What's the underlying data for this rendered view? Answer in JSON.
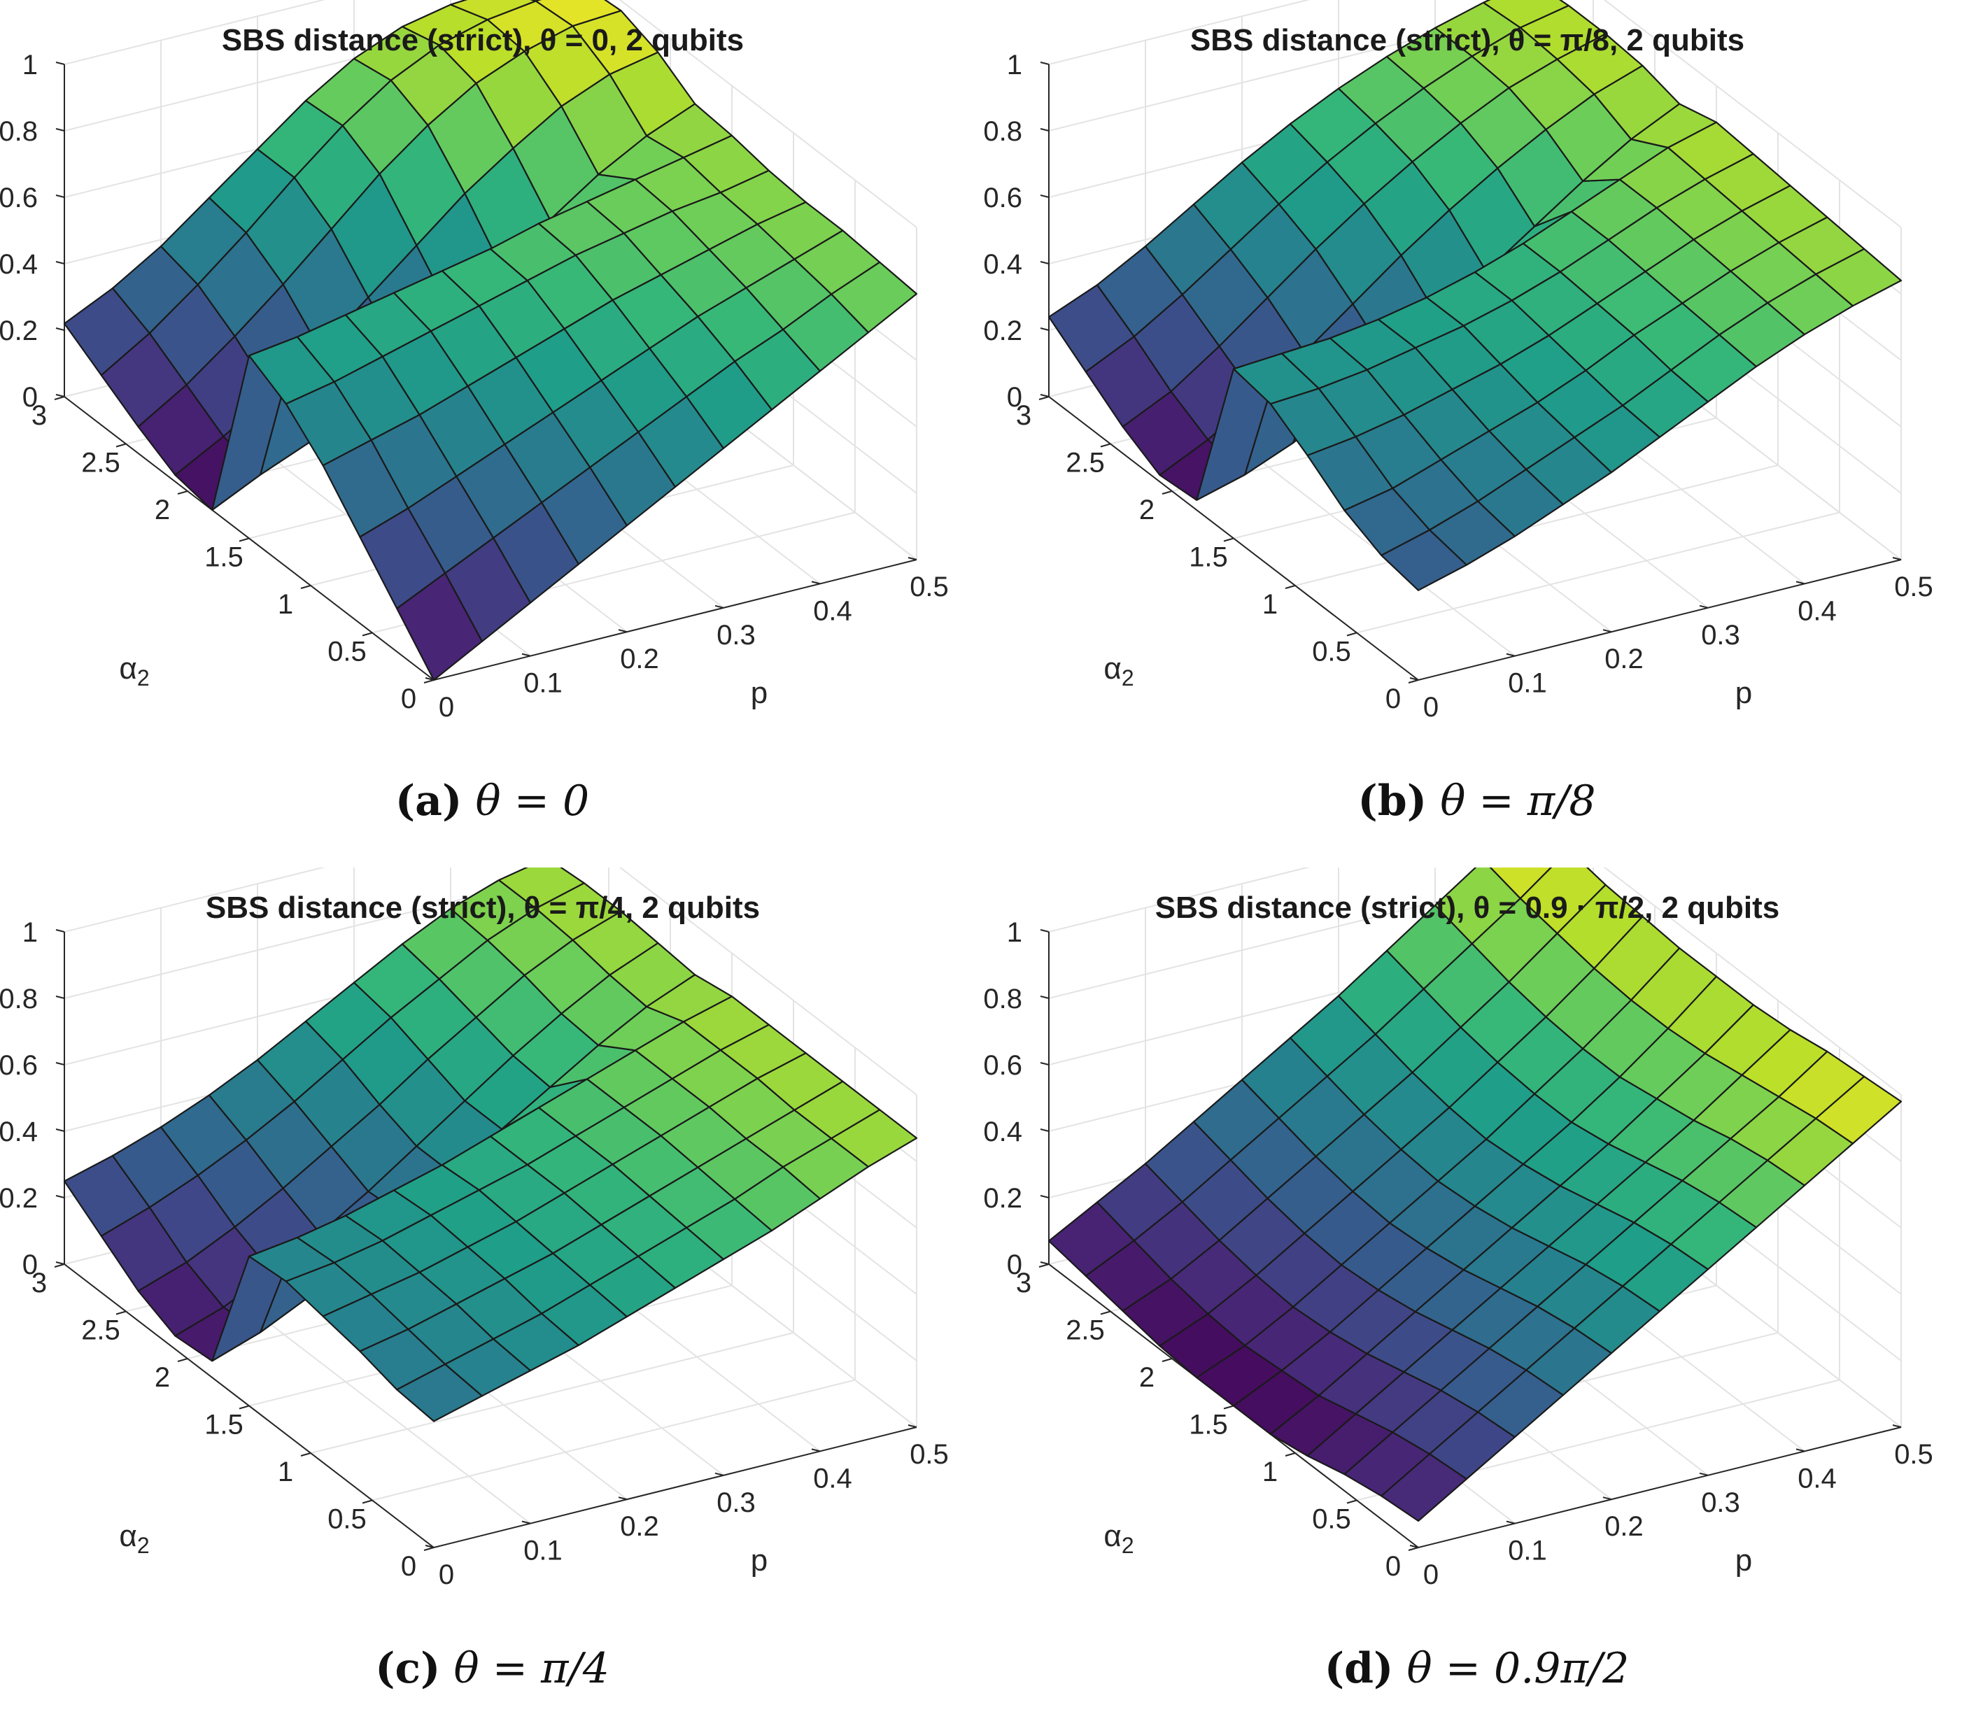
{
  "axes_common": {
    "xlabel": "p",
    "ylabel": "α",
    "ylabel_sub": "2",
    "x_ticks": [
      "0",
      "0.1",
      "0.2",
      "0.3",
      "0.4",
      "0.5"
    ],
    "y_ticks": [
      "0",
      "0.5",
      "1",
      "1.5",
      "2",
      "2.5",
      "3"
    ],
    "z_ticks": [
      "0",
      "0.2",
      "0.4",
      "0.6",
      "0.8",
      "1"
    ]
  },
  "chart_data": [
    {
      "type": "surface",
      "title": "SBS distance (strict), θ = 0, 2 qubits",
      "caption_label": "(a)",
      "caption_math": "θ = 0",
      "xlabel": "p",
      "ylabel": "α2",
      "zlabel": "",
      "xlim": [
        0,
        0.5
      ],
      "ylim": [
        0,
        3
      ],
      "zlim": [
        0,
        1
      ],
      "grid": true,
      "colormap": "viridis",
      "p": [
        0,
        0.05,
        0.1,
        0.15,
        0.2,
        0.25,
        0.3,
        0.35,
        0.4,
        0.45,
        0.5
      ],
      "alpha2": [
        0,
        0.3,
        0.6,
        0.9,
        1.2,
        1.5,
        1.8,
        2.1,
        2.4,
        2.7,
        3.0
      ],
      "z_rows_by_alpha2": [
        [
          0.0,
          0.08,
          0.16,
          0.24,
          0.32,
          0.4,
          0.48,
          0.56,
          0.64,
          0.72,
          0.8
        ],
        [
          0.13,
          0.2,
          0.27,
          0.34,
          0.41,
          0.48,
          0.55,
          0.62,
          0.68,
          0.75,
          0.81
        ],
        [
          0.26,
          0.31,
          0.37,
          0.43,
          0.49,
          0.55,
          0.61,
          0.67,
          0.72,
          0.77,
          0.82
        ],
        [
          0.39,
          0.43,
          0.47,
          0.52,
          0.57,
          0.62,
          0.67,
          0.71,
          0.75,
          0.79,
          0.82
        ],
        [
          0.49,
          0.52,
          0.56,
          0.6,
          0.64,
          0.68,
          0.72,
          0.75,
          0.78,
          0.8,
          0.83
        ],
        [
          0.55,
          0.57,
          0.6,
          0.63,
          0.66,
          0.69,
          0.73,
          0.76,
          0.79,
          0.82,
          0.85
        ],
        [
          0.0,
          0.07,
          0.13,
          0.21,
          0.3,
          0.4,
          0.51,
          0.62,
          0.72,
          0.8,
          0.86
        ],
        [
          0.02,
          0.1,
          0.19,
          0.29,
          0.41,
          0.53,
          0.65,
          0.75,
          0.84,
          0.9,
          0.93
        ],
        [
          0.08,
          0.17,
          0.28,
          0.4,
          0.53,
          0.66,
          0.77,
          0.86,
          0.92,
          0.96,
          0.97
        ],
        [
          0.15,
          0.24,
          0.35,
          0.47,
          0.6,
          0.72,
          0.82,
          0.89,
          0.93,
          0.95,
          0.96
        ],
        [
          0.22,
          0.29,
          0.38,
          0.49,
          0.6,
          0.71,
          0.8,
          0.86,
          0.89,
          0.9,
          0.9
        ]
      ]
    },
    {
      "type": "surface",
      "title": "SBS distance (strict), θ = π/8, 2 qubits",
      "caption_label": "(b)",
      "caption_math": "θ = π/8",
      "xlabel": "p",
      "ylabel": "α2",
      "zlabel": "",
      "xlim": [
        0,
        0.5
      ],
      "ylim": [
        0,
        3
      ],
      "zlim": [
        0,
        1
      ],
      "grid": true,
      "colormap": "viridis",
      "p": [
        0,
        0.05,
        0.1,
        0.15,
        0.2,
        0.25,
        0.3,
        0.35,
        0.4,
        0.45,
        0.5
      ],
      "alpha2": [
        0,
        0.3,
        0.6,
        0.9,
        1.2,
        1.5,
        1.8,
        2.1,
        2.4,
        2.7,
        3.0
      ],
      "z_rows_by_alpha2": [
        [
          0.27,
          0.31,
          0.36,
          0.42,
          0.48,
          0.55,
          0.62,
          0.69,
          0.75,
          0.8,
          0.84
        ],
        [
          0.29,
          0.33,
          0.38,
          0.44,
          0.5,
          0.56,
          0.63,
          0.7,
          0.76,
          0.81,
          0.85
        ],
        [
          0.34,
          0.37,
          0.42,
          0.47,
          0.52,
          0.58,
          0.65,
          0.71,
          0.77,
          0.82,
          0.86
        ],
        [
          0.42,
          0.44,
          0.47,
          0.51,
          0.55,
          0.6,
          0.66,
          0.72,
          0.78,
          0.83,
          0.87
        ],
        [
          0.49,
          0.5,
          0.52,
          0.55,
          0.58,
          0.62,
          0.67,
          0.73,
          0.79,
          0.84,
          0.88
        ],
        [
          0.51,
          0.52,
          0.53,
          0.55,
          0.58,
          0.62,
          0.67,
          0.73,
          0.79,
          0.85,
          0.89
        ],
        [
          0.03,
          0.07,
          0.13,
          0.21,
          0.3,
          0.4,
          0.5,
          0.6,
          0.7,
          0.79,
          0.86
        ],
        [
          0.02,
          0.09,
          0.18,
          0.28,
          0.39,
          0.5,
          0.6,
          0.69,
          0.77,
          0.84,
          0.89
        ],
        [
          0.08,
          0.15,
          0.25,
          0.36,
          0.47,
          0.57,
          0.66,
          0.74,
          0.81,
          0.86,
          0.9
        ],
        [
          0.16,
          0.23,
          0.32,
          0.42,
          0.52,
          0.61,
          0.69,
          0.76,
          0.82,
          0.87,
          0.9
        ],
        [
          0.24,
          0.3,
          0.38,
          0.47,
          0.56,
          0.64,
          0.71,
          0.77,
          0.82,
          0.86,
          0.89
        ]
      ]
    },
    {
      "type": "surface",
      "title": "SBS distance (strict), θ = π/4, 2 qubits",
      "caption_label": "(c)",
      "caption_math": "θ = π/4",
      "xlabel": "p",
      "ylabel": "α2",
      "zlabel": "",
      "xlim": [
        0,
        0.5
      ],
      "ylim": [
        0,
        3
      ],
      "zlim": [
        0,
        1
      ],
      "grid": true,
      "colormap": "viridis",
      "p": [
        0,
        0.05,
        0.1,
        0.15,
        0.2,
        0.25,
        0.3,
        0.35,
        0.4,
        0.45,
        0.5
      ],
      "alpha2": [
        0,
        0.3,
        0.6,
        0.9,
        1.2,
        1.5,
        1.8,
        2.1,
        2.4,
        2.7,
        3.0
      ],
      "z_rows_by_alpha2": [
        [
          0.38,
          0.42,
          0.46,
          0.5,
          0.55,
          0.6,
          0.65,
          0.7,
          0.76,
          0.82,
          0.87
        ],
        [
          0.39,
          0.43,
          0.47,
          0.51,
          0.56,
          0.61,
          0.66,
          0.71,
          0.77,
          0.82,
          0.87
        ],
        [
          0.42,
          0.45,
          0.49,
          0.53,
          0.57,
          0.62,
          0.67,
          0.72,
          0.77,
          0.82,
          0.87
        ],
        [
          0.44,
          0.47,
          0.5,
          0.54,
          0.58,
          0.63,
          0.68,
          0.73,
          0.78,
          0.83,
          0.87
        ],
        [
          0.46,
          0.48,
          0.51,
          0.55,
          0.59,
          0.63,
          0.68,
          0.73,
          0.78,
          0.83,
          0.87
        ],
        [
          0.45,
          0.47,
          0.5,
          0.54,
          0.58,
          0.63,
          0.68,
          0.73,
          0.78,
          0.83,
          0.87
        ],
        [
          0.05,
          0.1,
          0.17,
          0.25,
          0.34,
          0.43,
          0.53,
          0.62,
          0.71,
          0.79,
          0.85
        ],
        [
          0.04,
          0.09,
          0.16,
          0.24,
          0.33,
          0.43,
          0.53,
          0.63,
          0.72,
          0.8,
          0.86
        ],
        [
          0.09,
          0.14,
          0.21,
          0.29,
          0.38,
          0.47,
          0.57,
          0.66,
          0.75,
          0.82,
          0.87
        ],
        [
          0.17,
          0.22,
          0.28,
          0.35,
          0.43,
          0.52,
          0.61,
          0.69,
          0.77,
          0.83,
          0.87
        ],
        [
          0.25,
          0.29,
          0.34,
          0.4,
          0.47,
          0.55,
          0.63,
          0.71,
          0.78,
          0.83,
          0.86
        ]
      ]
    },
    {
      "type": "surface",
      "title": "SBS distance (strict), θ = 0.9 · π/2, 2 qubits",
      "caption_label": "(d)",
      "caption_math": "θ = 0.9π/2",
      "xlabel": "p",
      "ylabel": "α2",
      "zlabel": "",
      "xlim": [
        0,
        0.5
      ],
      "ylim": [
        0,
        3
      ],
      "zlim": [
        0,
        1
      ],
      "grid": true,
      "colormap": "viridis",
      "p": [
        0,
        0.05,
        0.1,
        0.15,
        0.2,
        0.25,
        0.3,
        0.35,
        0.4,
        0.45,
        0.5
      ],
      "alpha2": [
        0,
        0.3,
        0.6,
        0.9,
        1.2,
        1.5,
        1.8,
        2.1,
        2.4,
        2.7,
        3.0
      ],
      "z_rows_by_alpha2": [
        [
          0.08,
          0.17,
          0.26,
          0.35,
          0.44,
          0.53,
          0.62,
          0.71,
          0.8,
          0.89,
          0.98
        ],
        [
          0.07,
          0.16,
          0.25,
          0.34,
          0.43,
          0.52,
          0.61,
          0.7,
          0.79,
          0.88,
          0.97
        ],
        [
          0.05,
          0.14,
          0.23,
          0.32,
          0.41,
          0.5,
          0.59,
          0.68,
          0.77,
          0.86,
          0.96
        ],
        [
          0.02,
          0.11,
          0.2,
          0.29,
          0.38,
          0.47,
          0.56,
          0.65,
          0.74,
          0.84,
          0.94
        ],
        [
          0.0,
          0.08,
          0.17,
          0.26,
          0.35,
          0.44,
          0.53,
          0.62,
          0.72,
          0.82,
          0.93
        ],
        [
          0.0,
          0.07,
          0.15,
          0.24,
          0.33,
          0.42,
          0.51,
          0.6,
          0.7,
          0.81,
          0.93
        ],
        [
          0.0,
          0.06,
          0.14,
          0.23,
          0.32,
          0.41,
          0.5,
          0.6,
          0.7,
          0.81,
          0.93
        ],
        [
          0.01,
          0.07,
          0.15,
          0.24,
          0.33,
          0.42,
          0.51,
          0.61,
          0.71,
          0.82,
          0.94
        ],
        [
          0.03,
          0.09,
          0.17,
          0.26,
          0.35,
          0.44,
          0.53,
          0.63,
          0.73,
          0.84,
          0.95
        ],
        [
          0.05,
          0.12,
          0.2,
          0.29,
          0.38,
          0.47,
          0.56,
          0.66,
          0.76,
          0.86,
          0.97
        ],
        [
          0.07,
          0.15,
          0.23,
          0.32,
          0.41,
          0.5,
          0.59,
          0.69,
          0.79,
          0.89,
          0.99
        ]
      ]
    }
  ]
}
